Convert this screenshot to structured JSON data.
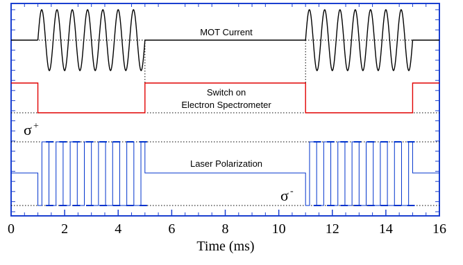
{
  "chart_data": {
    "type": "line",
    "xlabel": "Time (ms)",
    "xlim": [
      0,
      16
    ],
    "x_ticks": [
      "0",
      "2",
      "4",
      "6",
      "8",
      "10",
      "12",
      "14",
      "16"
    ],
    "grid": false,
    "series": [
      {
        "name": "MOT Current",
        "color": "#000000",
        "style": "oscillating during 1–5 ms and 11–15 ms, steady otherwise",
        "on_intervals": [
          [
            1,
            5
          ],
          [
            11,
            15
          ]
        ],
        "oscillation_cycles_per_interval": 7
      },
      {
        "name": "Switch on Electron Spectrometer",
        "color": "#e00000",
        "high_intervals": [
          [
            0,
            1
          ],
          [
            5,
            11
          ],
          [
            15,
            16
          ]
        ],
        "low_intervals": [
          [
            1,
            5
          ],
          [
            11,
            15
          ]
        ]
      },
      {
        "name": "Laser Polarization",
        "color": "#0033cc",
        "levels": [
          "σ+",
          "σ-"
        ],
        "switching_intervals": [
          [
            1,
            5
          ],
          [
            11,
            15
          ]
        ],
        "steady_level": "mid"
      }
    ],
    "annotations": [
      {
        "text_line1": "MOT Current"
      },
      {
        "text_line1": "Switch on",
        "text_line2": "Electron Spectrometer"
      },
      {
        "text_line1": "Laser Polarization"
      },
      {
        "sigma": "σ",
        "sup": "+"
      },
      {
        "sigma": "σ",
        "sup": "-"
      }
    ],
    "colors": {
      "frame": "#1a3fd0",
      "mot": "#000000",
      "switch": "#e00000",
      "laser": "#0033cc"
    }
  }
}
